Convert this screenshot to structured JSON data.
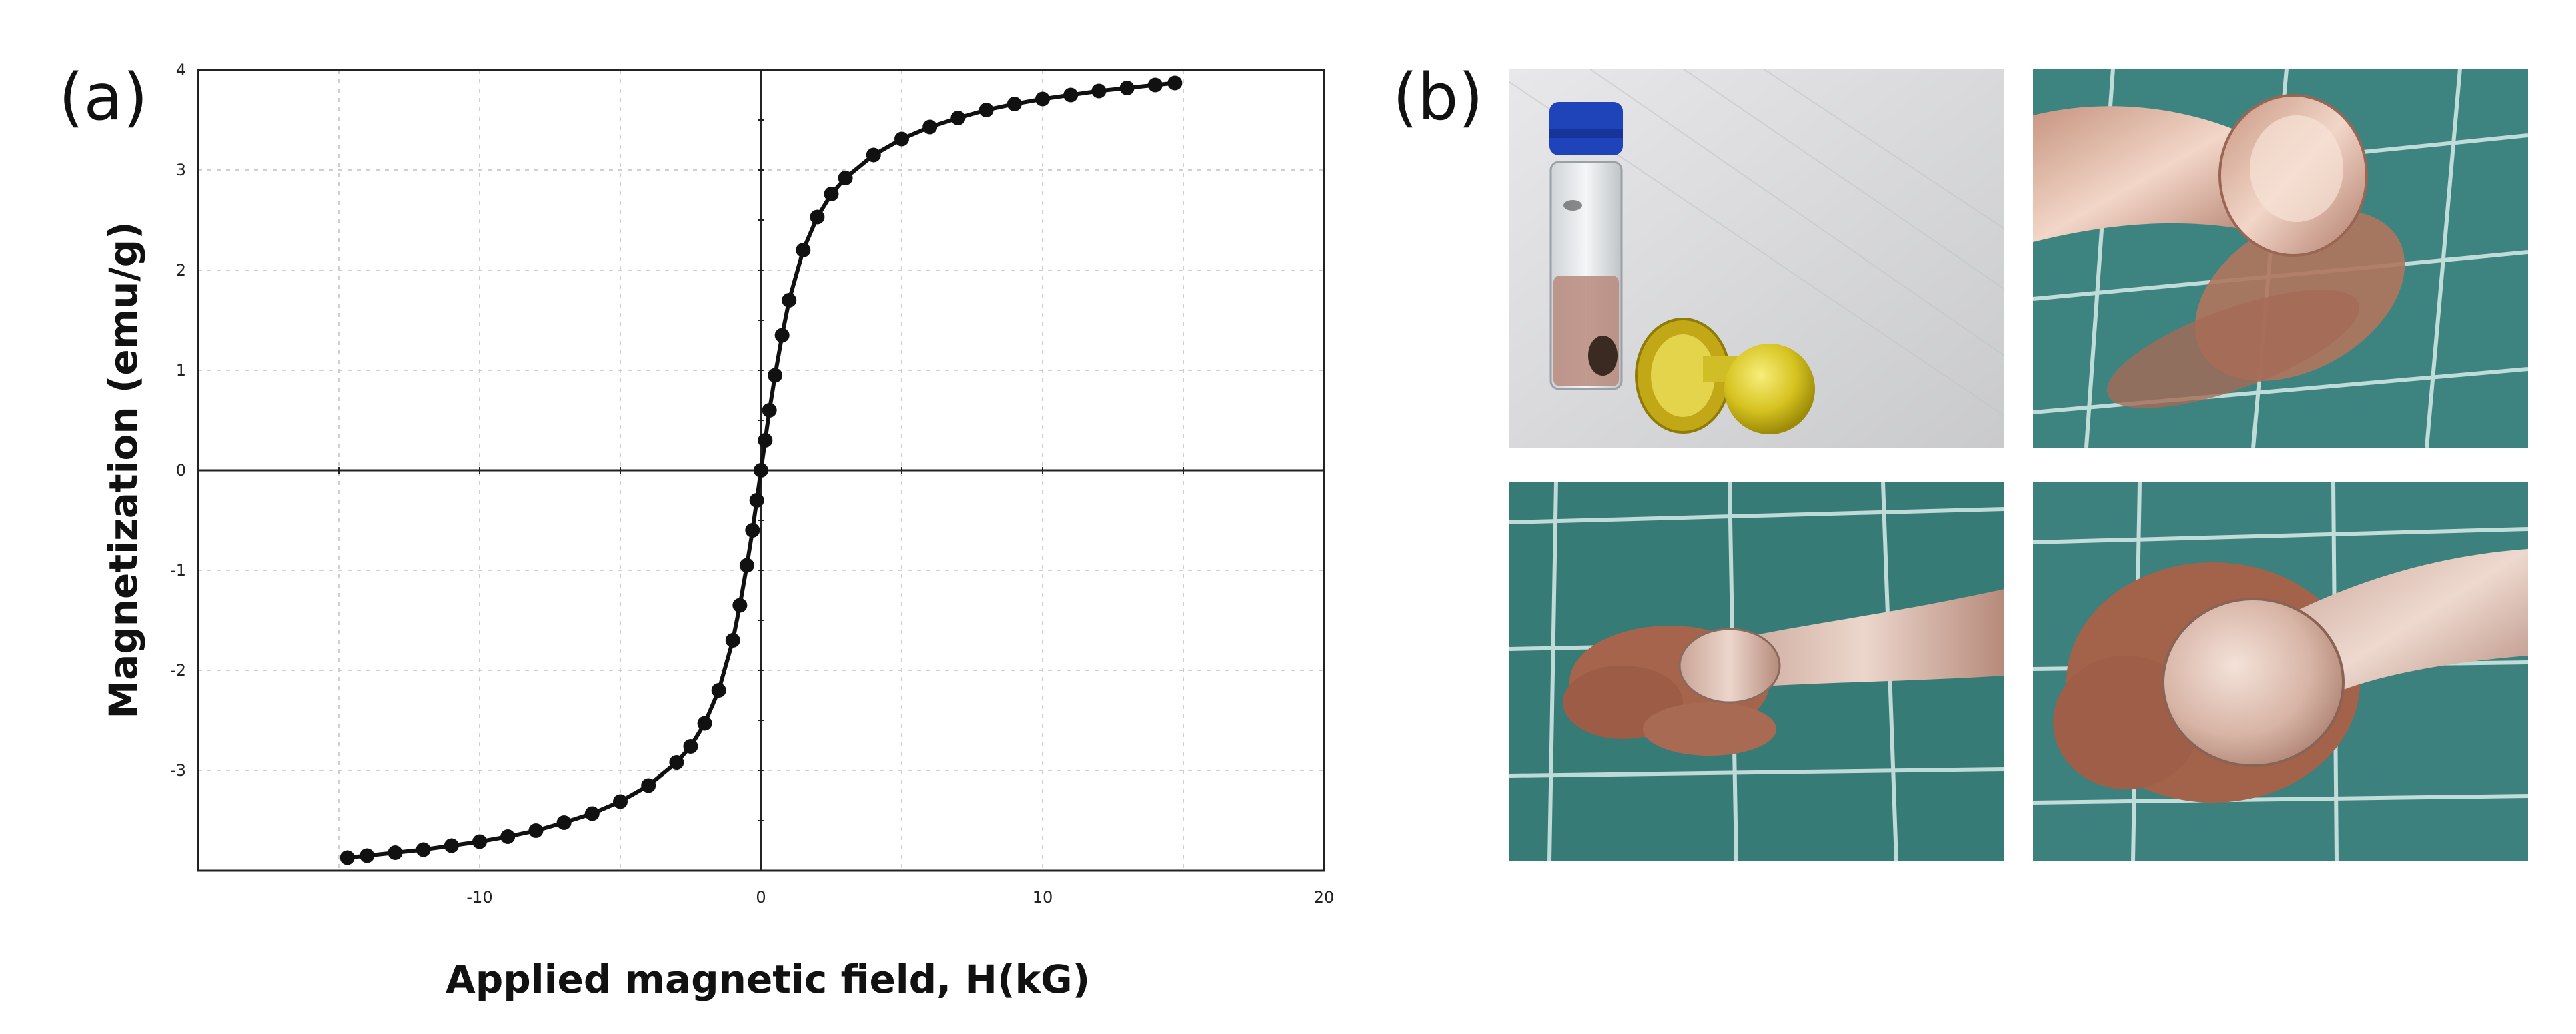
{
  "panel_labels": {
    "a": "(a)",
    "b": "(b)"
  },
  "chart_data": {
    "type": "scatter",
    "title": "",
    "xlabel": "Applied magnetic field, H(kG)",
    "ylabel": "Magnetization (emu/g)",
    "xlim": [
      -20,
      20
    ],
    "ylim": [
      -4,
      4
    ],
    "x_ticks": [
      -10,
      0,
      10,
      20
    ],
    "y_ticks": [
      -3,
      -2,
      -1,
      0,
      1,
      2,
      3,
      4
    ],
    "grid": true,
    "series": [
      {
        "marker": "circle",
        "color": "#111111",
        "x": [
          -14.7,
          -14.0,
          -13.0,
          -12.0,
          -11.0,
          -10.0,
          -9.0,
          -8.0,
          -7.0,
          -6.0,
          -5.0,
          -4.0,
          -3.0,
          -2.5,
          -2.0,
          -1.5,
          -1.0,
          -0.75,
          -0.5,
          -0.3,
          -0.15,
          0,
          0.15,
          0.3,
          0.5,
          0.75,
          1.0,
          1.5,
          2.0,
          2.5,
          3.0,
          4.0,
          5.0,
          6.0,
          7.0,
          8.0,
          9.0,
          10.0,
          11.0,
          12.0,
          13.0,
          14.0,
          14.7
        ],
        "y": [
          -3.87,
          -3.85,
          -3.82,
          -3.79,
          -3.75,
          -3.71,
          -3.66,
          -3.6,
          -3.52,
          -3.43,
          -3.31,
          -3.15,
          -2.92,
          -2.76,
          -2.53,
          -2.2,
          -1.7,
          -1.35,
          -0.95,
          -0.6,
          -0.3,
          0,
          0.3,
          0.6,
          0.95,
          1.35,
          1.7,
          2.2,
          2.53,
          2.76,
          2.92,
          3.15,
          3.31,
          3.43,
          3.52,
          3.6,
          3.66,
          3.71,
          3.75,
          3.79,
          3.82,
          3.85,
          3.87
        ]
      }
    ]
  },
  "photos": [
    {
      "name": "vial-and-capsule-photo",
      "bg": "#d9dadc"
    },
    {
      "name": "spoon-powder-photo-1",
      "bg": "#3b7f7b"
    },
    {
      "name": "spoon-powder-photo-2",
      "bg": "#357a76"
    },
    {
      "name": "spoon-powder-photo-3",
      "bg": "#3b807c"
    }
  ]
}
